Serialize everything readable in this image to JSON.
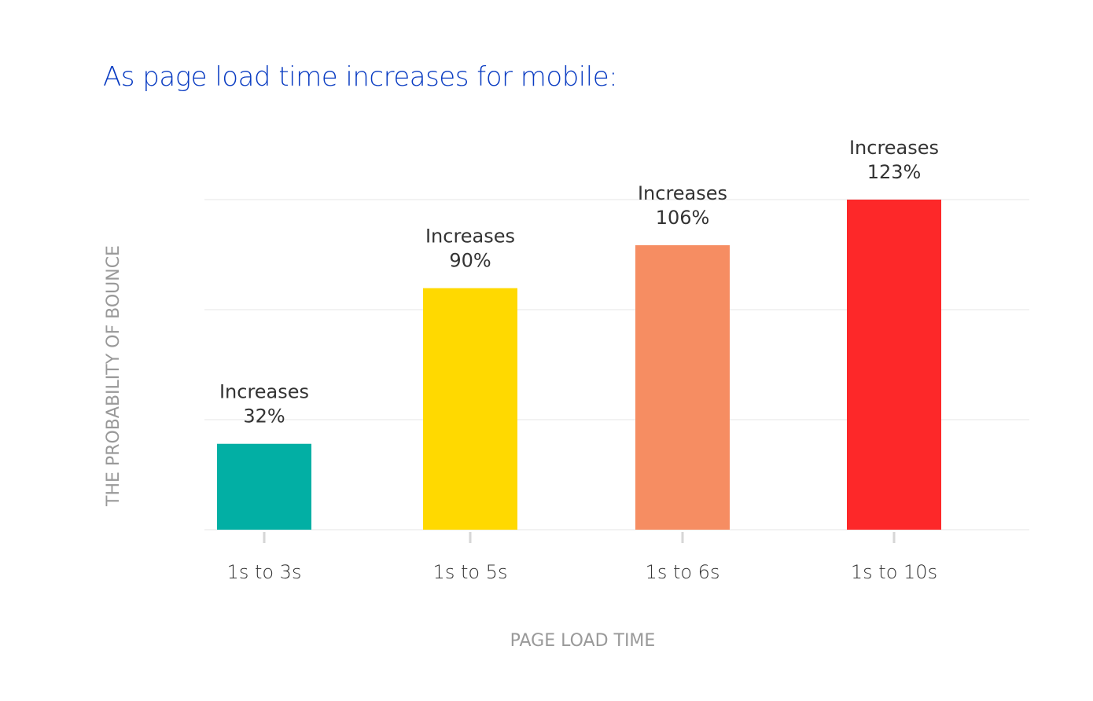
{
  "chart_data": {
    "type": "bar",
    "title": "As page load time increases for mobile:",
    "xlabel": "PAGE LOAD TIME",
    "ylabel": "THE PROBABILITY OF BOUNCE",
    "categories": [
      "1s to 3s",
      "1s to 5s",
      "1s to 6s",
      "1s to 10s"
    ],
    "values": [
      32,
      90,
      106,
      123
    ],
    "unit": "%",
    "data_labels": [
      {
        "line1": "Increases",
        "line2": "32%"
      },
      {
        "line1": "Increases",
        "line2": "90%"
      },
      {
        "line1": "Increases",
        "line2": "106%"
      },
      {
        "line1": "Increases",
        "line2": "123%"
      }
    ],
    "colors": [
      "#02afa4",
      "#ffd900",
      "#f68d62",
      "#fd2829"
    ],
    "grid": true,
    "ylim": [
      0,
      123
    ],
    "legend": "none"
  }
}
